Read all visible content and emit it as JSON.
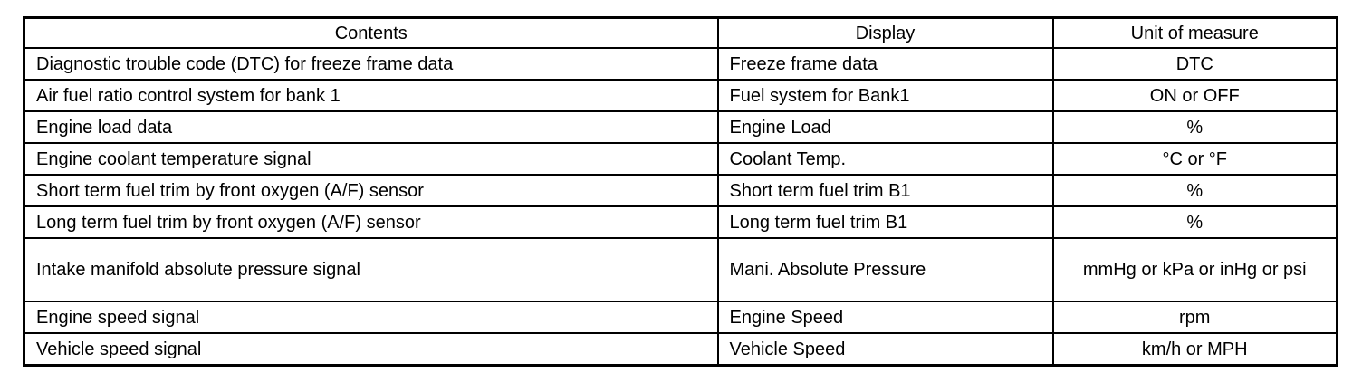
{
  "table": {
    "headers": [
      "Contents",
      "Display",
      "Unit of measure"
    ],
    "rows": [
      [
        "Diagnostic trouble code (DTC) for freeze frame data",
        "Freeze frame data",
        "DTC"
      ],
      [
        "Air fuel ratio control system for bank 1",
        "Fuel system for Bank1",
        "ON or OFF"
      ],
      [
        "Engine load data",
        "Engine Load",
        "%"
      ],
      [
        "Engine coolant temperature signal",
        "Coolant Temp.",
        "°C or °F"
      ],
      [
        "Short term fuel trim by front oxygen (A/F) sensor",
        "Short term fuel trim B1",
        "%"
      ],
      [
        "Long term fuel trim by front oxygen (A/F) sensor",
        "Long term fuel trim B1",
        "%"
      ],
      [
        "Intake manifold absolute pressure signal",
        "Mani. Absolute Pressure",
        "mmHg or kPa or inHg or psi"
      ],
      [
        "Engine speed signal",
        "Engine Speed",
        "rpm"
      ],
      [
        "Vehicle speed signal",
        "Vehicle Speed",
        "km/h or MPH"
      ]
    ]
  }
}
